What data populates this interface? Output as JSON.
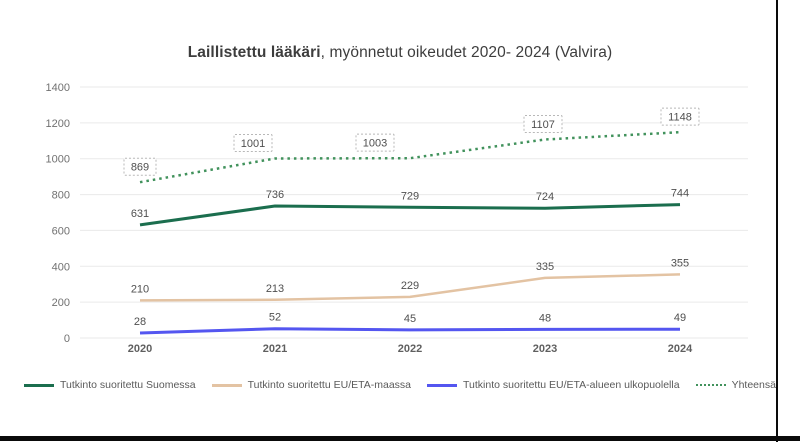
{
  "title": {
    "bold": "Laillistettu lääkäri",
    "rest": ", myönnetut oikeudet 2020- 2024 (Valvira)"
  },
  "chart_data": {
    "type": "line",
    "categories": [
      "2020",
      "2021",
      "2022",
      "2023",
      "2024"
    ],
    "series": [
      {
        "name": "Tutkinto suoritettu Suomessa",
        "color": "#1b6e4e",
        "style": "solid",
        "values": [
          631,
          736,
          729,
          724,
          744
        ]
      },
      {
        "name": "Tutkinto suoritettu EU/ETA-maassa",
        "color": "#e3c3a3",
        "style": "solid",
        "values": [
          210,
          213,
          229,
          335,
          355
        ]
      },
      {
        "name": "Tutkinto suoritettu EU/ETA-alueen ulkopuolella",
        "color": "#5456f0",
        "style": "solid",
        "values": [
          28,
          52,
          45,
          48,
          49
        ]
      },
      {
        "name": "Yhteensä",
        "color": "#41925c",
        "style": "dotted",
        "values": [
          869,
          1001,
          1003,
          1107,
          1148
        ],
        "boxed_labels": true
      }
    ],
    "ylim": [
      0,
      1400
    ],
    "yticks": [
      0,
      200,
      400,
      600,
      800,
      1000,
      1200,
      1400
    ],
    "grid": true,
    "legend_position": "bottom",
    "xlabel": "",
    "ylabel": ""
  },
  "colors": {
    "grid": "#eaeaea",
    "tick_text": "#717171",
    "x_tick_text": "#5f5f5f",
    "data_label_text": "#4f4f4f",
    "title_text": "#3d3d3d",
    "box_border": "#b8b8b8",
    "box_fill": "#ffffff"
  }
}
